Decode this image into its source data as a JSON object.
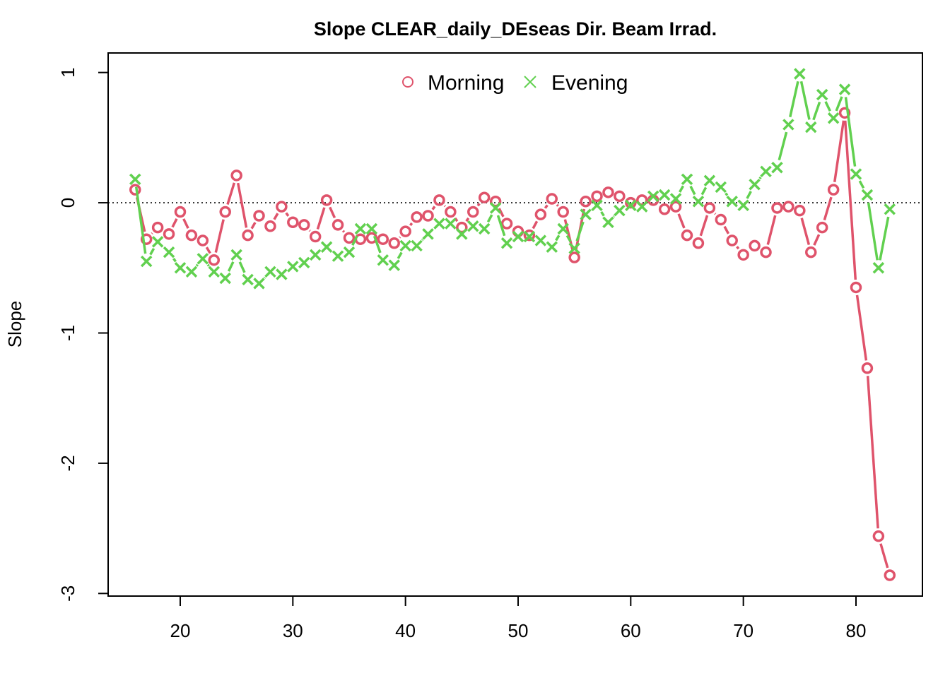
{
  "chart_data": {
    "type": "line",
    "title": "Slope CLEAR_daily_DEseas Dir. Beam Irrad.",
    "xlabel": "",
    "ylabel": "Slope",
    "xlim": [
      13.6,
      85.9
    ],
    "ylim": [
      -3.02,
      1.15
    ],
    "x_ticks": [
      20,
      30,
      40,
      50,
      60,
      70,
      80
    ],
    "y_ticks": [
      -3,
      -2,
      -1,
      0,
      1
    ],
    "reference_line": 0,
    "legend_position": "top",
    "x": [
      16,
      17,
      18,
      19,
      20,
      21,
      22,
      23,
      24,
      25,
      26,
      27,
      28,
      29,
      30,
      31,
      32,
      33,
      34,
      35,
      36,
      37,
      38,
      39,
      40,
      41,
      42,
      43,
      44,
      45,
      46,
      47,
      48,
      49,
      50,
      51,
      52,
      53,
      54,
      55,
      56,
      57,
      58,
      59,
      60,
      61,
      62,
      63,
      64,
      65,
      66,
      67,
      68,
      69,
      70,
      71,
      72,
      73,
      74,
      75,
      76,
      77,
      78,
      79,
      80,
      81,
      82,
      83
    ],
    "series": [
      {
        "name": "Morning",
        "color": "#DF536B",
        "marker": "circle",
        "values": [
          0.1,
          -0.28,
          -0.19,
          -0.24,
          -0.07,
          -0.25,
          -0.29,
          -0.44,
          -0.07,
          0.21,
          -0.25,
          -0.1,
          -0.18,
          -0.03,
          -0.15,
          -0.17,
          -0.26,
          0.02,
          -0.17,
          -0.27,
          -0.28,
          -0.27,
          -0.28,
          -0.31,
          -0.22,
          -0.11,
          -0.1,
          0.02,
          -0.07,
          -0.19,
          -0.07,
          0.04,
          0.01,
          -0.16,
          -0.22,
          -0.25,
          -0.09,
          0.03,
          -0.07,
          -0.42,
          0.01,
          0.05,
          0.08,
          0.05,
          0.0,
          0.02,
          0.02,
          -0.05,
          -0.03,
          -0.25,
          -0.31,
          -0.04,
          -0.13,
          -0.29,
          -0.4,
          -0.33,
          -0.38,
          -0.04,
          -0.03,
          -0.06,
          -0.38,
          -0.19,
          0.1,
          0.69,
          -0.65,
          -1.27,
          -2.56,
          -2.86
        ]
      },
      {
        "name": "Evening",
        "color": "#61D04F",
        "marker": "cross",
        "values": [
          0.18,
          -0.45,
          -0.3,
          -0.38,
          -0.5,
          -0.53,
          -0.43,
          -0.53,
          -0.58,
          -0.4,
          -0.59,
          -0.62,
          -0.53,
          -0.55,
          -0.49,
          -0.46,
          -0.4,
          -0.34,
          -0.41,
          -0.38,
          -0.2,
          -0.2,
          -0.44,
          -0.48,
          -0.33,
          -0.33,
          -0.24,
          -0.16,
          -0.16,
          -0.24,
          -0.18,
          -0.2,
          -0.04,
          -0.31,
          -0.26,
          -0.26,
          -0.29,
          -0.34,
          -0.2,
          -0.35,
          -0.09,
          -0.02,
          -0.15,
          -0.06,
          -0.02,
          -0.03,
          0.05,
          0.06,
          0.03,
          0.18,
          0.01,
          0.17,
          0.12,
          0.01,
          -0.02,
          0.14,
          0.24,
          0.27,
          0.6,
          0.99,
          0.58,
          0.83,
          0.65,
          0.87,
          0.22,
          0.06,
          -0.5,
          -0.05
        ]
      }
    ]
  }
}
